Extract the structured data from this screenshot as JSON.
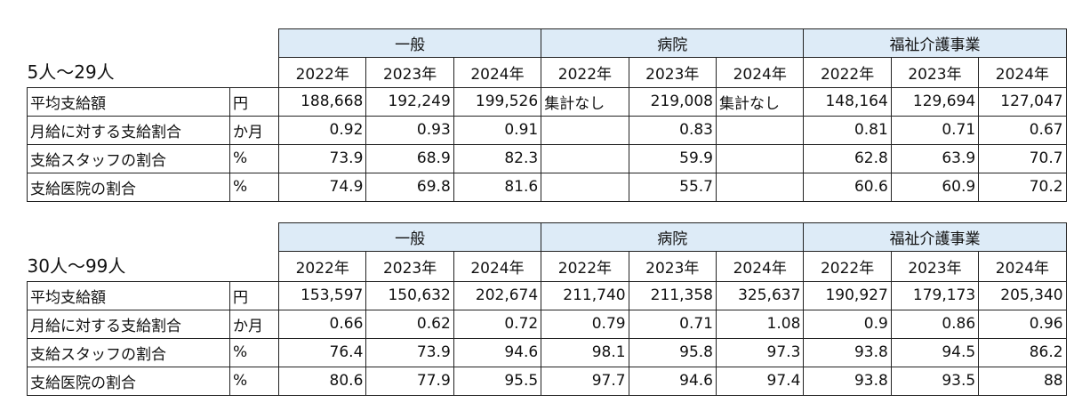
{
  "tables": [
    {
      "title": "5人〜29人",
      "groups": [
        "一般",
        "病院",
        "福祉介護事業"
      ],
      "years": [
        "2022年",
        "2023年",
        "2024年"
      ],
      "rows": [
        {
          "label": "平均支給額",
          "unit": "円",
          "values": [
            "188,668",
            "192,249",
            "199,526",
            "集計なし",
            "219,008",
            "集計なし",
            "148,164",
            "129,694",
            "127,047"
          ]
        },
        {
          "label": "月給に対する支給割合",
          "unit": "か月",
          "values": [
            "0.92",
            "0.93",
            "0.91",
            null,
            "0.83",
            null,
            "0.81",
            "0.71",
            "0.67"
          ]
        },
        {
          "label": "支給スタッフの割合",
          "unit": "%",
          "values": [
            "73.9",
            "68.9",
            "82.3",
            null,
            "59.9",
            null,
            "62.8",
            "63.9",
            "70.7"
          ]
        },
        {
          "label": "支給医院の割合",
          "unit": "%",
          "values": [
            "74.9",
            "69.8",
            "81.6",
            null,
            "55.7",
            null,
            "60.6",
            "60.9",
            "70.2"
          ]
        }
      ]
    },
    {
      "title": "30人〜99人",
      "groups": [
        "一般",
        "病院",
        "福祉介護事業"
      ],
      "years": [
        "2022年",
        "2023年",
        "2024年"
      ],
      "rows": [
        {
          "label": "平均支給額",
          "unit": "円",
          "values": [
            "153,597",
            "150,632",
            "202,674",
            "211,740",
            "211,358",
            "325,637",
            "190,927",
            "179,173",
            "205,340"
          ]
        },
        {
          "label": "月給に対する支給割合",
          "unit": "か月",
          "values": [
            "0.66",
            "0.62",
            "0.72",
            "0.79",
            "0.71",
            "1.08",
            "0.9",
            "0.86",
            "0.96"
          ]
        },
        {
          "label": "支給スタッフの割合",
          "unit": "%",
          "values": [
            "76.4",
            "73.9",
            "94.6",
            "98.1",
            "95.8",
            "97.3",
            "93.8",
            "94.5",
            "86.2"
          ]
        },
        {
          "label": "支給医院の割合",
          "unit": "%",
          "values": [
            "80.6",
            "77.9",
            "95.5",
            "97.7",
            "94.6",
            "97.4",
            "93.8",
            "93.5",
            "88"
          ]
        }
      ]
    }
  ]
}
